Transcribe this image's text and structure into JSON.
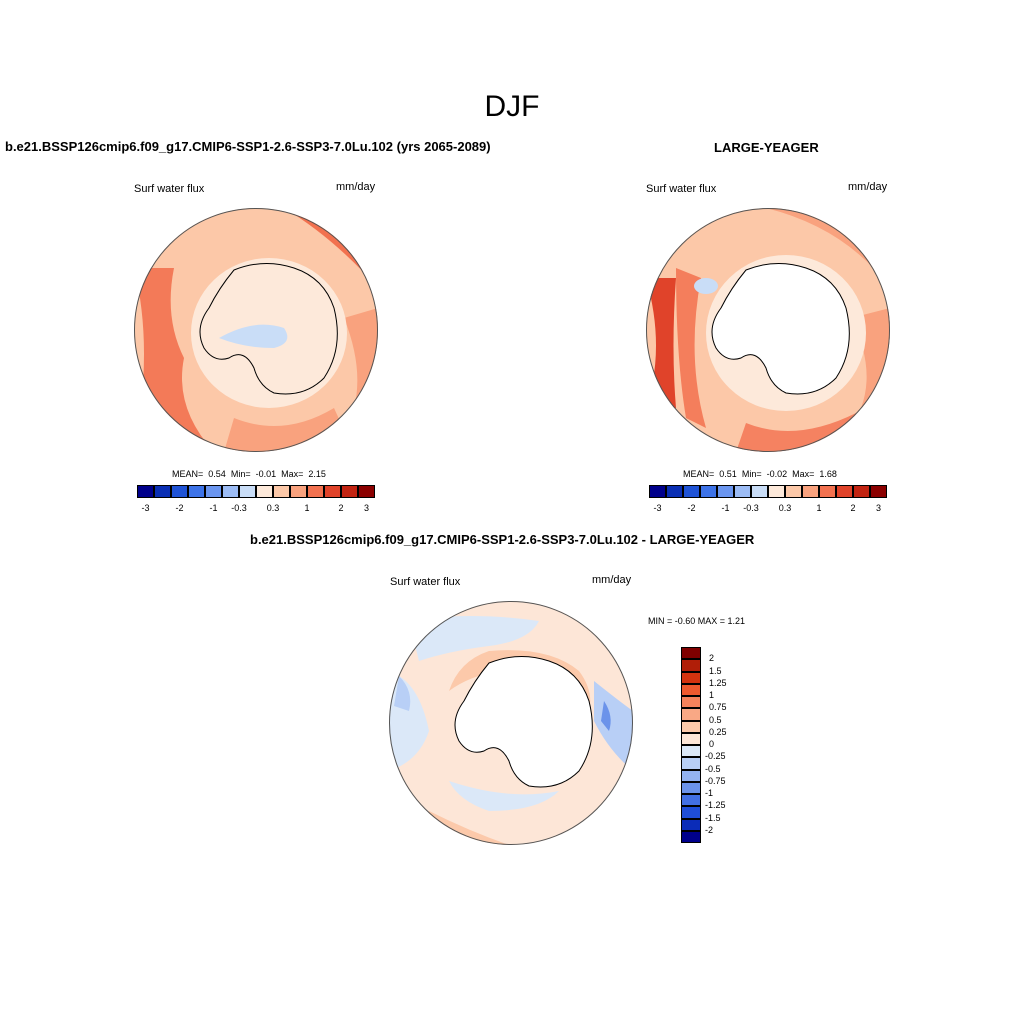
{
  "main_title": "DJF",
  "panels": [
    {
      "title": "b.e21.BSSP126cmip6.f09_g17.CMIP6-SSP1-2.6-SSP3-7.0Lu.102 (yrs 2065-2089)",
      "left_label": "Surf water flux",
      "units": "mm/day",
      "stats": {
        "mean_label": "MEAN=",
        "mean": "0.54",
        "min_label": "Min=",
        "min": "-0.01",
        "max_label": "Max=",
        "max": "2.15"
      }
    },
    {
      "title": "LARGE-YEAGER",
      "left_label": "Surf water flux",
      "units": "mm/day",
      "stats": {
        "mean_label": "MEAN=",
        "mean": "0.51",
        "min_label": "Min=",
        "min": "-0.02",
        "max_label": "Max=",
        "max": "1.68"
      }
    },
    {
      "title": "b.e21.BSSP126cmip6.f09_g17.CMIP6-SSP1-2.6-SSP3-7.0Lu.102 - LARGE-YEAGER",
      "left_label": "Surf water flux",
      "units": "mm/day",
      "minmax": "MIN =  -0.60 MAX =   1.21"
    }
  ],
  "colorbar_horizontal": {
    "colors": [
      "#00008b",
      "#0a2fb4",
      "#1f53d6",
      "#3d73e8",
      "#6b96f0",
      "#9cbcf5",
      "#c9ddf7",
      "#fde9da",
      "#fcc8a8",
      "#f9a27e",
      "#f2714f",
      "#e0432a",
      "#c22412",
      "#8b0000"
    ],
    "labels": [
      "-3",
      "-2",
      "-1",
      "-0.3",
      "0.3",
      "1",
      "2",
      "3"
    ]
  },
  "colorbar_vertical": {
    "colors": [
      "#7f0000",
      "#b01e08",
      "#d3330f",
      "#ee5a2f",
      "#f5835c",
      "#f9a885",
      "#fcc9aa",
      "#fde6d7",
      "#dbe8f8",
      "#b8cff6",
      "#93b2f0",
      "#6b93ea",
      "#4270e4",
      "#1f4ed8",
      "#0b2cb8",
      "#00008b"
    ],
    "labels": [
      "2",
      "1.5",
      "1.25",
      "1",
      "0.75",
      "0.5",
      "0.25",
      "0",
      "-0.25",
      "-0.5",
      "-0.75",
      "-1",
      "-1.25",
      "-1.5",
      "-2"
    ]
  }
}
